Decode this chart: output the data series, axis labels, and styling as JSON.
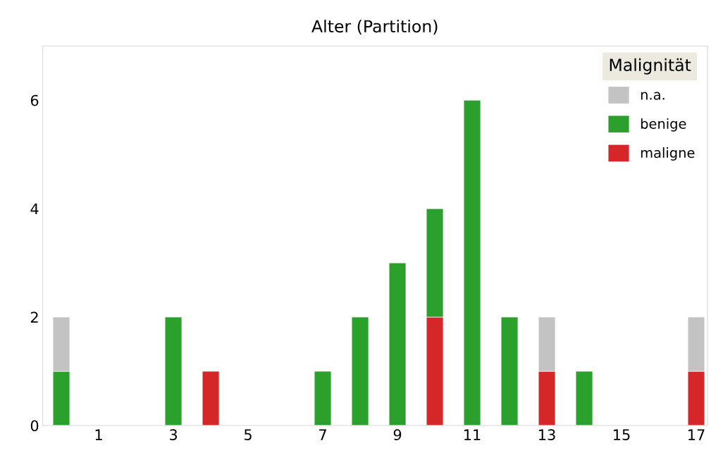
{
  "chart_data": {
    "type": "bar",
    "title": "Alter (Partition)",
    "stacked": true,
    "x": [
      0,
      1,
      2,
      3,
      4,
      5,
      6,
      7,
      8,
      9,
      10,
      11,
      12,
      13,
      14,
      15,
      16,
      17
    ],
    "series": [
      {
        "name": "maligne",
        "color": "#d62728",
        "values": [
          null,
          null,
          null,
          null,
          1,
          null,
          null,
          null,
          null,
          null,
          2,
          null,
          null,
          1,
          null,
          null,
          null,
          1
        ]
      },
      {
        "name": "benige",
        "color": "#2ca02c",
        "values": [
          1,
          null,
          null,
          2,
          null,
          null,
          null,
          1,
          2,
          3,
          2,
          6,
          2,
          null,
          1,
          null,
          null,
          null
        ]
      },
      {
        "name": "n.a.",
        "color": "#c3c3c3",
        "values": [
          1,
          null,
          null,
          null,
          null,
          null,
          null,
          null,
          null,
          null,
          null,
          null,
          null,
          1,
          null,
          null,
          null,
          1
        ]
      }
    ],
    "xlim": [
      -0.5,
      17.3
    ],
    "xticks": [
      1,
      3,
      5,
      7,
      9,
      11,
      13,
      15,
      17
    ],
    "ylim": [
      0,
      7
    ],
    "yticks": [
      0,
      2,
      4,
      6
    ],
    "legend_title": "Malignität",
    "legend": "top right",
    "grid": false
  }
}
